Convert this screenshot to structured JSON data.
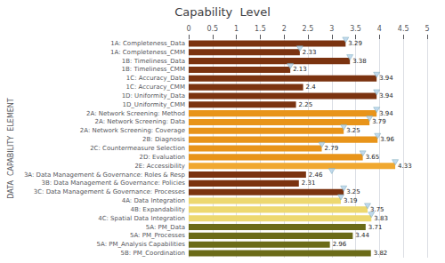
{
  "chart_data": {
    "type": "bar",
    "orientation": "horizontal",
    "title": "Capability  Level",
    "ylabel": "DATA  CAPABILITY  ELEMENT",
    "categories": [
      "1A: Completeness_Data",
      "1A: Completeness_CMM",
      "1B: Timeliness_Data",
      "1B: Timeliness_CMM",
      "1C: Accuracy_Data",
      "1C: Accuracy_CMM",
      "1D: Uniformity_Data",
      "1D_Uniformity_CMM",
      "2A: Network Screening: Method",
      "2A: Network Screening: Data",
      "2A: Network Screening: Coverage",
      "2B: Diagnosis",
      "2C: Countermeasure Selection",
      "2D: Evaluation",
      "2E: Accessibility",
      "3A: Data Management & Governance: Roles & Resp",
      "3B: Data Management & Governance: Policies",
      "3C: Data Management & Governance: Processes",
      "4A: Data Integration",
      "4B: Expandability",
      "4C: Spatial Data Integration",
      "5A: PM_Data",
      "5A: PM_Processes",
      "5A: PM_Analysis Capabilities",
      "5B: PM_Coordination"
    ],
    "series": [
      {
        "type": "bar",
        "data_labels": true,
        "values": [
          3.29,
          2.33,
          3.38,
          2.13,
          3.94,
          2.4,
          3.94,
          2.25,
          3.94,
          3.79,
          3.25,
          3.96,
          2.79,
          3.65,
          4.33,
          2.46,
          2.31,
          3.25,
          3.19,
          3.75,
          3.83,
          3.71,
          3.44,
          2.96,
          3.82
        ],
        "colors": [
          "#7B3310",
          "#7B3310",
          "#7B3310",
          "#7B3310",
          "#7B3310",
          "#7B3310",
          "#7B3310",
          "#7B3310",
          "#E8941A",
          "#E8941A",
          "#E8941A",
          "#E8941A",
          "#E8941A",
          "#E8941A",
          "#F0A830",
          "#7B3310",
          "#7B3310",
          "#7B3310",
          "#EDD870",
          "#EDD870",
          "#EDD870",
          "#6B6B18",
          "#6B6B18",
          "#6B6B18",
          "#6B6B18"
        ]
      },
      {
        "type": "scatter",
        "marker": "triangle-down",
        "color": "#B0D0E8",
        "values": [
          3.29,
          2.33,
          3.38,
          2.13,
          3.94,
          null,
          3.94,
          null,
          3.94,
          3.79,
          3.25,
          3.96,
          2.79,
          3.65,
          4.33,
          3.0,
          null,
          3.25,
          3.19,
          3.75,
          3.83,
          null,
          null,
          null,
          null
        ]
      }
    ],
    "xlim": [
      0,
      5
    ],
    "xticks": [
      0,
      0.5,
      1,
      1.5,
      2,
      2.5,
      3,
      3.5,
      4,
      4.5,
      5
    ],
    "grid": true
  }
}
